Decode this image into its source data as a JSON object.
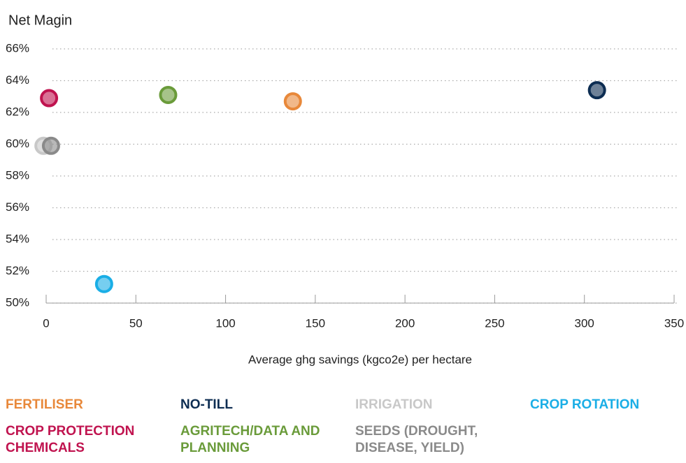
{
  "chart_data": {
    "type": "scatter",
    "title": "Net Magin",
    "x_label": "Average ghg savings (kgco2e) per hectare",
    "xlim": [
      0,
      350
    ],
    "xticks": [
      0,
      50,
      100,
      150,
      200,
      250,
      300,
      350
    ],
    "ylim": [
      50,
      66
    ],
    "yticks": [
      {
        "value": 50,
        "label": "50%"
      },
      {
        "value": 52,
        "label": "52%"
      },
      {
        "value": 54,
        "label": "54%"
      },
      {
        "value": 56,
        "label": "56%"
      },
      {
        "value": 58,
        "label": "58%"
      },
      {
        "value": 60,
        "label": "60%"
      },
      {
        "value": 62,
        "label": "62%"
      },
      {
        "value": 64,
        "label": "64%"
      },
      {
        "value": 66,
        "label": "66%"
      }
    ],
    "grid": true,
    "series": [
      {
        "name": "FERTILISER",
        "color": "#e8883a",
        "x": [
          137.5
        ],
        "values": [
          62.7
        ]
      },
      {
        "name": "NO-TILL",
        "color": "#0d2d52",
        "x": [
          307
        ],
        "values": [
          63.4
        ]
      },
      {
        "name": "IRRIGATION",
        "color": "#c8c8c8",
        "x": [
          -1.5
        ],
        "values": [
          59.9
        ]
      },
      {
        "name": "CROP ROTATION",
        "color": "#1aaee6",
        "x": [
          32.3
        ],
        "values": [
          51.2
        ]
      },
      {
        "name": "CROP PROTECTION CHEMICALS",
        "color": "#c0134f",
        "x": [
          1.6
        ],
        "values": [
          62.9
        ]
      },
      {
        "name": "AGRITECH/DATA AND PLANNING",
        "color": "#6a9b3a",
        "x": [
          68
        ],
        "values": [
          63.1
        ]
      },
      {
        "name": "SEEDS (DROUGHT, DISEASE, YIELD)",
        "color": "#8a8a8a",
        "x": [
          2.7
        ],
        "values": [
          59.9
        ]
      }
    ]
  }
}
